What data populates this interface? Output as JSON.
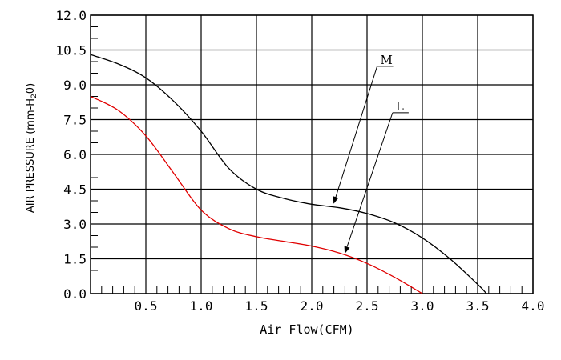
{
  "chart_data": {
    "type": "line",
    "xlabel": "Air Flow(CFM)",
    "ylabel": {
      "main": "AIR PRESSURE (mm-H",
      "sub": "2",
      "end": "0)"
    },
    "xlim": [
      0,
      4.0
    ],
    "ylim": [
      0,
      12.0
    ],
    "grid": true,
    "x_ticks": [
      "0.5",
      "1.0",
      "1.5",
      "2.0",
      "2.5",
      "3.0",
      "3.5",
      "4.0"
    ],
    "x_tick_values": [
      0.5,
      1.0,
      1.5,
      2.0,
      2.5,
      3.0,
      3.5,
      4.0
    ],
    "y_ticks": [
      "0.0",
      "1.5",
      "3.0",
      "4.5",
      "6.0",
      "7.5",
      "9.0",
      "10.5",
      "12.0"
    ],
    "y_tick_values": [
      0,
      1.5,
      3.0,
      4.5,
      6.0,
      7.5,
      9.0,
      10.5,
      12.0
    ],
    "series": [
      {
        "name": "M",
        "color": "#000000",
        "x": [
          0,
          0.25,
          0.5,
          0.75,
          1.0,
          1.25,
          1.5,
          1.75,
          2.0,
          2.25,
          2.5,
          2.75,
          3.0,
          3.25,
          3.5,
          3.58
        ],
        "y": [
          10.3,
          9.9,
          9.3,
          8.3,
          7.0,
          5.4,
          4.5,
          4.1,
          3.85,
          3.7,
          3.45,
          3.05,
          2.4,
          1.5,
          0.4,
          0.0
        ]
      },
      {
        "name": "L",
        "color": "#e00000",
        "x": [
          0,
          0.25,
          0.5,
          0.75,
          1.0,
          1.25,
          1.5,
          1.75,
          2.0,
          2.25,
          2.5,
          2.75,
          3.0
        ],
        "y": [
          8.5,
          7.9,
          6.8,
          5.2,
          3.6,
          2.8,
          2.45,
          2.25,
          2.05,
          1.75,
          1.3,
          0.7,
          0.0
        ]
      }
    ]
  }
}
